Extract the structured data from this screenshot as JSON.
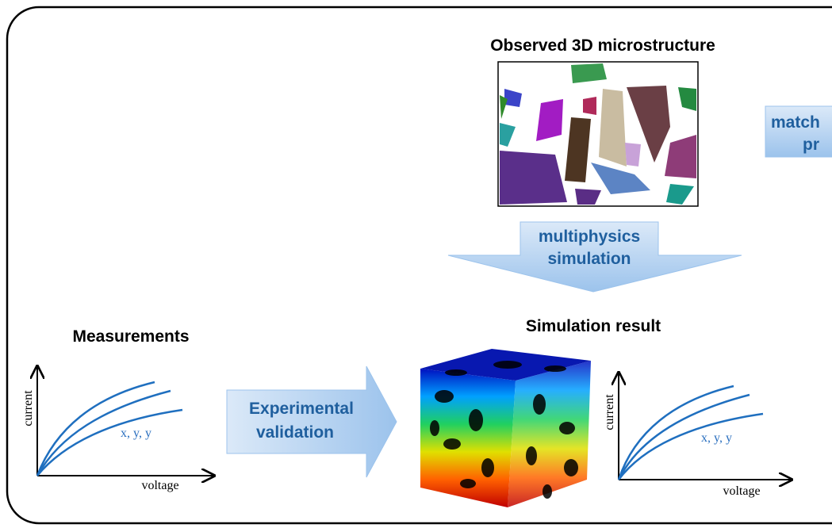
{
  "microstructure": {
    "title": "Observed 3D microstructure"
  },
  "matching_box": {
    "line1": "match",
    "line2": "pr"
  },
  "down_arrow": {
    "line1": "multiphysics",
    "line2": "simulation"
  },
  "simulation": {
    "title": "Simulation result"
  },
  "measurements": {
    "title": "Measurements"
  },
  "right_arrow": {
    "line1": "Experimental",
    "line2": "validation"
  },
  "left_plot": {
    "y_label": "current",
    "x_label": "voltage",
    "curve_label": "x, y, y"
  },
  "right_plot": {
    "y_label": "current",
    "x_label": "voltage",
    "curve_label": "x, y, y"
  }
}
